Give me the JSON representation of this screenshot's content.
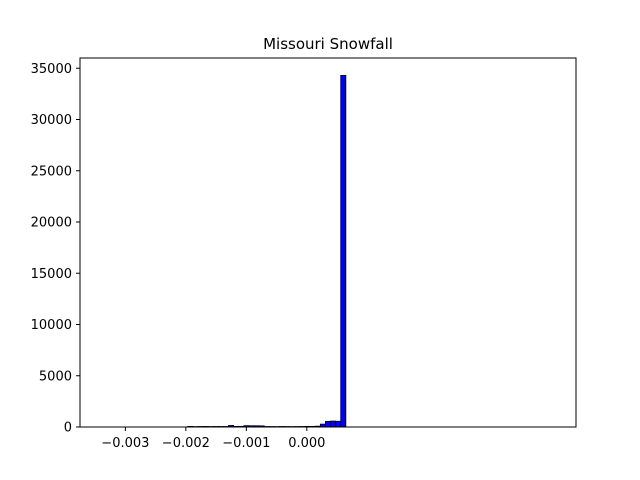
{
  "chart_data": {
    "type": "bar",
    "title": "Missouri Snowfall",
    "xlabel": "",
    "ylabel": "",
    "xlim": [
      -0.00375,
      0.00445
    ],
    "ylim": [
      0,
      36000
    ],
    "xticks": [
      {
        "value": -0.003,
        "label": "−0.003"
      },
      {
        "value": -0.002,
        "label": "−0.002"
      },
      {
        "value": -0.001,
        "label": "−0.001"
      },
      {
        "value": 0.0,
        "label": "0.000"
      }
    ],
    "yticks": [
      {
        "value": 0,
        "label": "0"
      },
      {
        "value": 5000,
        "label": "5000"
      },
      {
        "value": 10000,
        "label": "10000"
      },
      {
        "value": 15000,
        "label": "15000"
      },
      {
        "value": 20000,
        "label": "20000"
      },
      {
        "value": 25000,
        "label": "25000"
      },
      {
        "value": 30000,
        "label": "30000"
      },
      {
        "value": 35000,
        "label": "35000"
      }
    ],
    "bin_start": -0.00357,
    "bin_width": 8.43e-05,
    "values": [
      2,
      0,
      0,
      0,
      0,
      0,
      0,
      0,
      0,
      0,
      0,
      0,
      0,
      0,
      0,
      0,
      0,
      0,
      0,
      60,
      40,
      50,
      55,
      45,
      50,
      50,
      50,
      150,
      60,
      60,
      130,
      120,
      120,
      110,
      50,
      45,
      40,
      50,
      45,
      40,
      45,
      50,
      60,
      60,
      80,
      280,
      550,
      580,
      560,
      34300,
      0,
      0,
      0,
      0,
      0,
      0,
      0,
      0,
      0,
      2
    ],
    "bar_color": "#0000ff",
    "edge_color": "#000000",
    "grid": false
  }
}
